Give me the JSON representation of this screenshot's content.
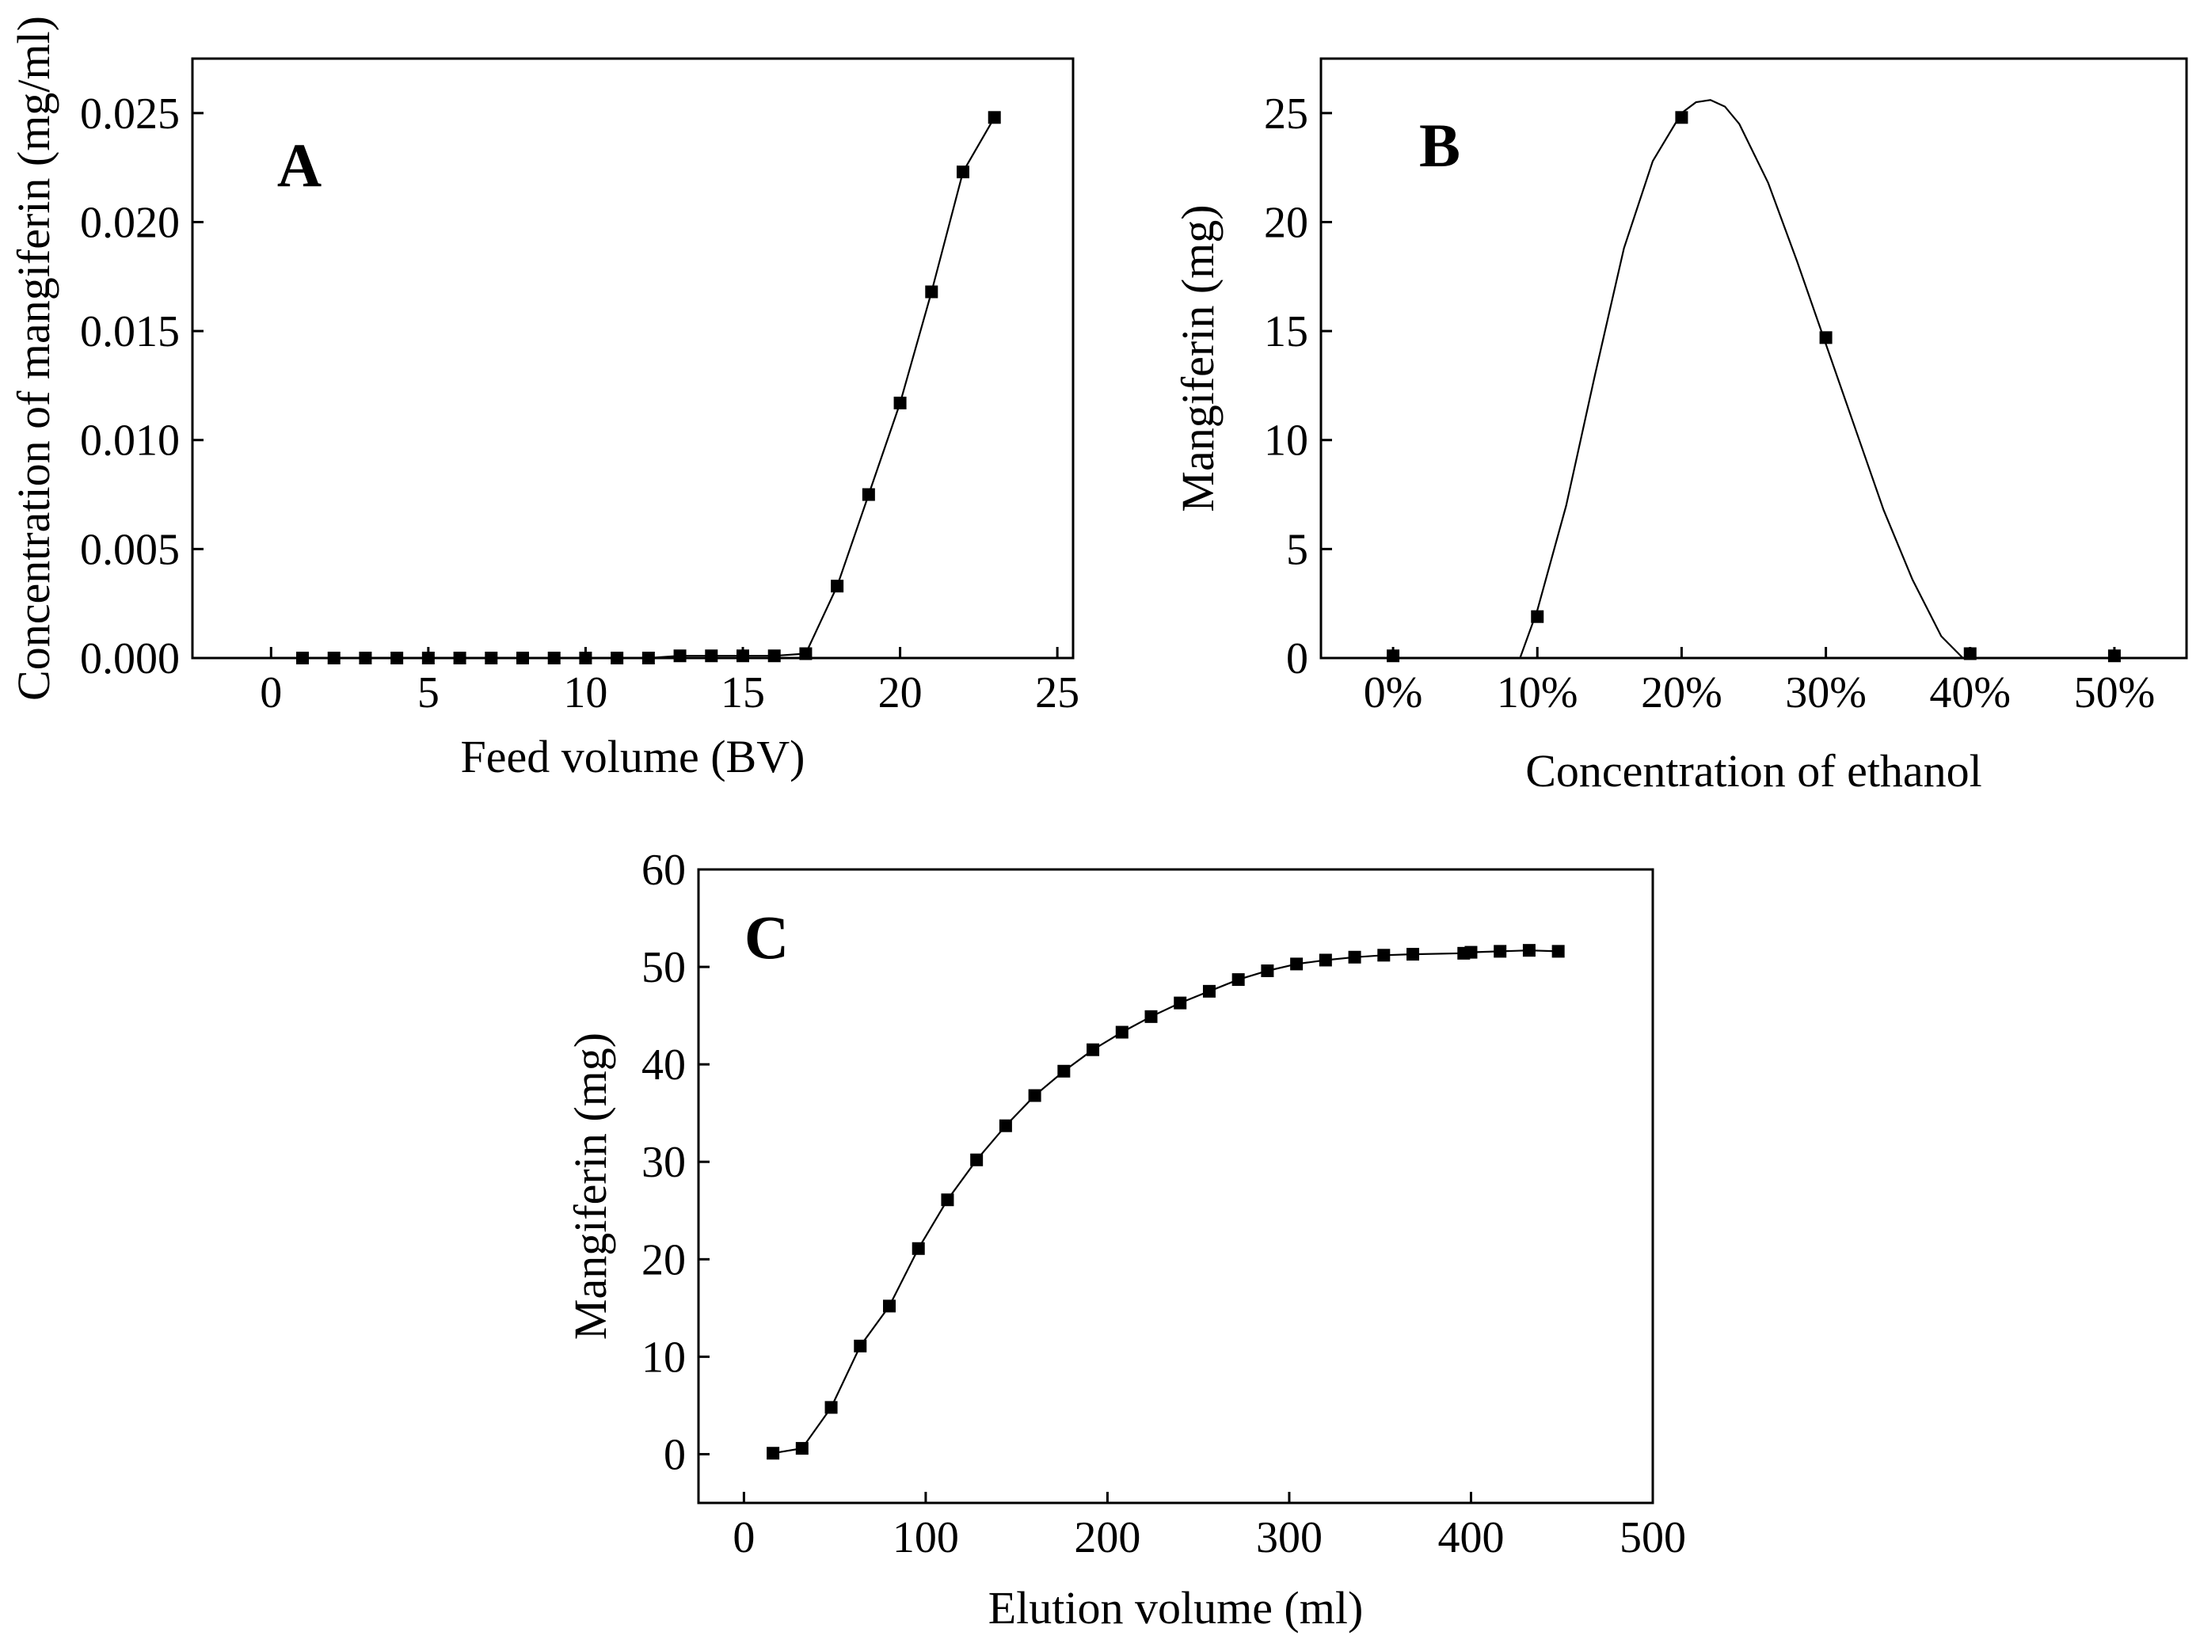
{
  "figure_title": "",
  "chart_data": [
    {
      "panel": "A",
      "type": "line",
      "title": "",
      "xlabel": "Feed volume (BV)",
      "ylabel": "Concentration of mangiferin (mg/ml)",
      "xlim": [
        -2.5,
        25.5
      ],
      "ylim": [
        0,
        0.0275
      ],
      "xticks": [
        0,
        5,
        10,
        15,
        20,
        25
      ],
      "xtick_labels": [
        "0",
        "5",
        "10",
        "15",
        "20",
        "25"
      ],
      "yticks": [
        0,
        0.005,
        0.01,
        0.015,
        0.02,
        0.025
      ],
      "ytick_labels": [
        "0.000",
        "0.005",
        "0.010",
        "0.015",
        "0.020",
        "0.025"
      ],
      "grid": false,
      "marker": "square",
      "x": [
        1,
        2,
        3,
        4,
        5,
        6,
        7,
        8,
        9,
        10,
        11,
        12,
        13,
        14,
        15,
        16,
        17,
        18,
        19,
        20,
        21,
        22,
        23
      ],
      "y": [
        0.0,
        0.0,
        0.0,
        0.0,
        0.0,
        0.0,
        0.0,
        0.0,
        0.0,
        0.0,
        0.0,
        0.0,
        0.0001,
        0.0001,
        0.0001,
        0.0001,
        0.0002,
        0.0033,
        0.0075,
        0.0117,
        0.0168,
        0.0223,
        0.0248
      ]
    },
    {
      "panel": "B",
      "type": "line",
      "title": "",
      "xlabel": "Concentration of ethanol",
      "ylabel": "Mangiferin (mg)",
      "xlim": [
        -0.5,
        5.5
      ],
      "ylim": [
        0,
        27.5
      ],
      "xticks": [
        0,
        1,
        2,
        3,
        4,
        5
      ],
      "xtick_labels": [
        "0%",
        "10%",
        "20%",
        "30%",
        "40%",
        "50%"
      ],
      "yticks": [
        0,
        5,
        10,
        15,
        20,
        25
      ],
      "ytick_labels": [
        "0",
        "5",
        "10",
        "15",
        "20",
        "25"
      ],
      "grid": false,
      "marker": "square",
      "x": [
        0,
        1,
        2,
        3,
        4,
        5
      ],
      "y": [
        0.1,
        1.9,
        24.8,
        14.7,
        0.2,
        0.1
      ],
      "fit_curve": {
        "x": [
          0.88,
          1.0,
          1.2,
          1.4,
          1.6,
          1.8,
          2.0,
          2.1,
          2.2,
          2.3,
          2.4,
          2.6,
          2.8,
          3.0,
          3.2,
          3.4,
          3.6,
          3.8,
          3.95
        ],
        "y": [
          0.0,
          2.2,
          7.0,
          13.0,
          18.8,
          22.8,
          25.0,
          25.5,
          25.6,
          25.3,
          24.5,
          21.8,
          18.2,
          14.4,
          10.6,
          6.8,
          3.6,
          1.0,
          0.0
        ]
      }
    },
    {
      "panel": "C",
      "type": "line",
      "title": "",
      "xlabel": "Elution volume  (ml)",
      "ylabel": "Mangiferin (mg)",
      "xlim": [
        -25,
        500
      ],
      "ylim": [
        -5,
        60
      ],
      "xticks": [
        0,
        100,
        200,
        300,
        400,
        500
      ],
      "xtick_labels": [
        "0",
        "100",
        "200",
        "300",
        "400",
        "500"
      ],
      "yticks": [
        0,
        10,
        20,
        30,
        40,
        50,
        60
      ],
      "ytick_labels": [
        "0",
        "10",
        "20",
        "30",
        "40",
        "50",
        "60"
      ],
      "grid": false,
      "marker": "square",
      "x": [
        16,
        32,
        48,
        64,
        80,
        96,
        112,
        128,
        144,
        160,
        176,
        192,
        208,
        224,
        240,
        256,
        272,
        288,
        304,
        320,
        336,
        352,
        368,
        396,
        400,
        416,
        432,
        448
      ],
      "y": [
        0.1,
        0.6,
        4.8,
        11.1,
        15.2,
        21.1,
        26.1,
        30.2,
        33.7,
        36.8,
        39.3,
        41.5,
        43.3,
        44.9,
        46.3,
        47.5,
        48.7,
        49.6,
        50.3,
        50.7,
        51.0,
        51.2,
        51.3,
        51.4,
        51.5,
        51.6,
        51.7,
        51.6
      ]
    }
  ]
}
